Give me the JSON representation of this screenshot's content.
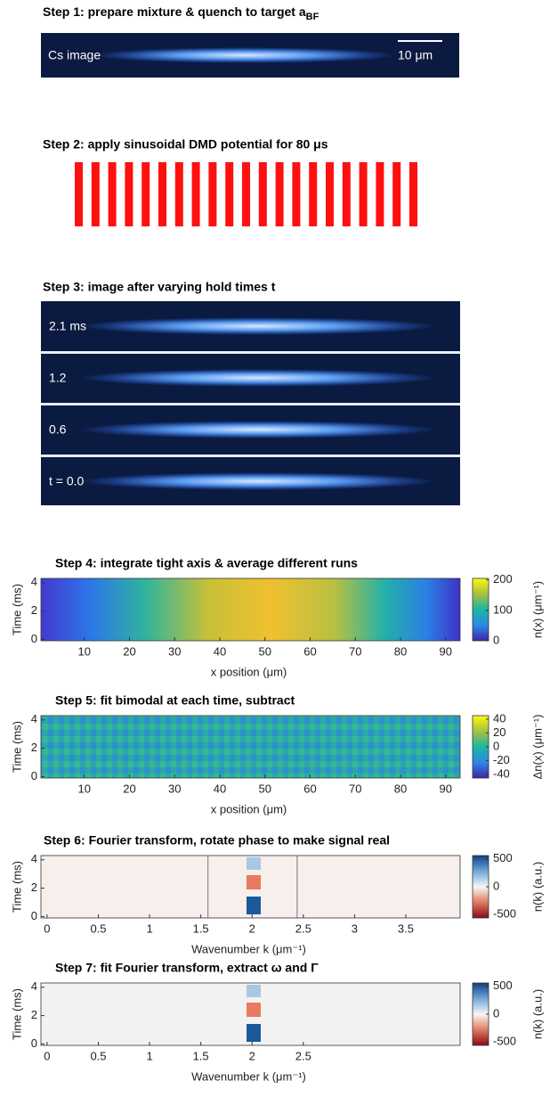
{
  "steps": [
    {
      "title": "Step 1: prepare mixture & quench to target a",
      "title_sub": "BF",
      "label": "Cs image",
      "scale_bar": "10 μm"
    },
    {
      "title": "Step 2: apply sinusoidal DMD potential for 80 μs"
    },
    {
      "title": "Step 3: image after varying hold times t",
      "labels": [
        "2.1 ms",
        "1.2",
        "0.6",
        "t = 0.0"
      ]
    },
    {
      "title": "Step 4: integrate tight axis & average different runs",
      "ylabel": "Time (ms)",
      "xlabel": "x position (μm)",
      "xlim": [
        0.4,
        93.2
      ],
      "xticks": [
        10,
        20,
        30,
        40,
        50,
        60,
        70,
        80,
        90
      ],
      "ylim": [
        -0.1,
        4.3
      ],
      "yticks": [
        0,
        2,
        4
      ],
      "clabel": "n(x) (μm⁻¹)",
      "clim": [
        0,
        205
      ],
      "cticks": [
        0,
        100,
        200
      ]
    },
    {
      "title": "Step 5: fit bimodal at each time, subtract",
      "ylabel": "Time (ms)",
      "xlabel": "x position (μm)",
      "xlim": [
        0.4,
        93.2
      ],
      "xticks": [
        10,
        20,
        30,
        40,
        50,
        60,
        70,
        80,
        90
      ],
      "ylim": [
        -0.1,
        4.3
      ],
      "yticks": [
        0,
        2,
        4
      ],
      "clabel": "Δn(x) (μm⁻¹)",
      "clim": [
        -45,
        45
      ],
      "cticks": [
        40,
        20,
        0,
        -20,
        -40
      ]
    },
    {
      "title": "Step 6: Fourier transform, rotate phase to make signal real",
      "ylabel": "Time (ms)",
      "xlabel": "Wavenumber k (μm⁻¹)",
      "xlim": [
        -0.06,
        4.03
      ],
      "xticks": [
        0,
        0.5,
        1,
        1.5,
        2,
        2.5,
        3,
        3.5
      ],
      "ylim": [
        -0.1,
        4.3
      ],
      "yticks": [
        0,
        2,
        4
      ],
      "clabel": "n(k) (a.u.)",
      "clim": [
        -560,
        560
      ],
      "cticks": [
        500,
        0,
        -500
      ],
      "vlines": [
        1.57,
        2.44
      ]
    },
    {
      "title": "Step 7: fit Fourier transform, extract ω and Γ",
      "ylabel": "Time (ms)",
      "xlabel": "Wavenumber k (μm⁻¹)",
      "xlim": [
        -0.06,
        4.03
      ],
      "xticks": [
        0,
        0.5,
        1,
        1.5,
        2,
        2.5
      ],
      "ylim": [
        -0.1,
        4.3
      ],
      "yticks": [
        0,
        2,
        4
      ],
      "clabel": "n(k) (a.u.)",
      "clim": [
        -560,
        560
      ],
      "cticks": [
        500,
        0,
        -500
      ]
    }
  ]
}
